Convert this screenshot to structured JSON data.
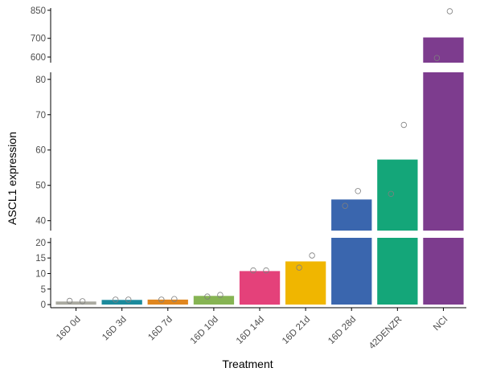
{
  "chart_data": {
    "type": "bar",
    "xlabel": "Treatment",
    "ylabel": "ASCL1 expression",
    "categories": [
      "16D 0d",
      "16D 3d",
      "16D 7d",
      "16D 10d",
      "16D 14d",
      "16D 21d",
      "16D 28d",
      "42DENZR",
      "NCI"
    ],
    "values": [
      1.0,
      1.5,
      1.6,
      2.8,
      10.8,
      13.9,
      46.0,
      57.3,
      705
    ],
    "colors": [
      "#a9a9a0",
      "#1b8a9c",
      "#e0861e",
      "#86b453",
      "#e4417a",
      "#f0b600",
      "#3a66ae",
      "#14a679",
      "#7d3c8e"
    ],
    "points": [
      [
        1.1,
        1.2
      ],
      [
        1.6,
        1.6
      ],
      [
        1.8,
        1.6
      ],
      [
        3.1,
        2.6
      ],
      [
        11.0,
        11.0
      ],
      [
        15.8,
        11.9
      ],
      [
        48.4,
        44.2
      ],
      [
        67.1,
        47.6
      ],
      [
        845,
        595
      ]
    ],
    "y_axis_breaks": true,
    "panels": [
      {
        "ylim": [
          -1,
          21.5
        ],
        "ticks": [
          0,
          5,
          10,
          15,
          20
        ]
      },
      {
        "ylim": [
          37.2,
          82
        ],
        "ticks": [
          40,
          50,
          60,
          70,
          80
        ]
      },
      {
        "ylim": [
          570,
          862
        ],
        "ticks": [
          600,
          700,
          850
        ]
      }
    ],
    "grid": false,
    "legend": "none"
  }
}
